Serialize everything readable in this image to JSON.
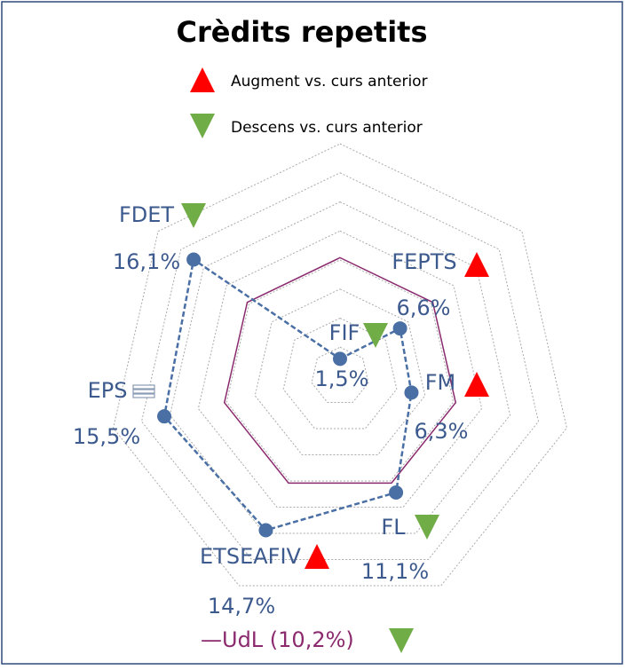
{
  "chart_data": {
    "type": "radar",
    "title": "Crèdits repetits",
    "legend": [
      {
        "trend": "up",
        "label": "Augment vs. curs anterior"
      },
      {
        "trend": "down",
        "label": "Descens vs. curs anterior"
      }
    ],
    "categories": [
      "FIF",
      "FEPTS",
      "FM",
      "FL",
      "ETSEAFIV",
      "EPS",
      "FDET"
    ],
    "series": [
      {
        "name": "Crèdits repetits",
        "color": "#4a6fa5",
        "values": [
          1.5,
          6.6,
          6.3,
          11.1,
          14.7,
          15.5,
          16.1
        ],
        "value_labels": [
          "1,5%",
          "6,6%",
          "6,3%",
          "11,1%",
          "14,7%",
          "15,5%",
          "16,1%"
        ],
        "trends": [
          "down",
          "up",
          "up",
          "down",
          "up",
          "equal",
          "down"
        ]
      }
    ],
    "reference": {
      "label": "—UdL (10,2%)",
      "value": 10.2,
      "color": "#8b2a6e",
      "trend": "down"
    },
    "rlim": [
      0,
      20
    ],
    "rticks": [
      2.5,
      5,
      7.5,
      10,
      12.5,
      15,
      17.5,
      20
    ],
    "trend_colors": {
      "up": "#ff0000",
      "down": "#70ad47",
      "equal": "#8a9bb5"
    }
  }
}
